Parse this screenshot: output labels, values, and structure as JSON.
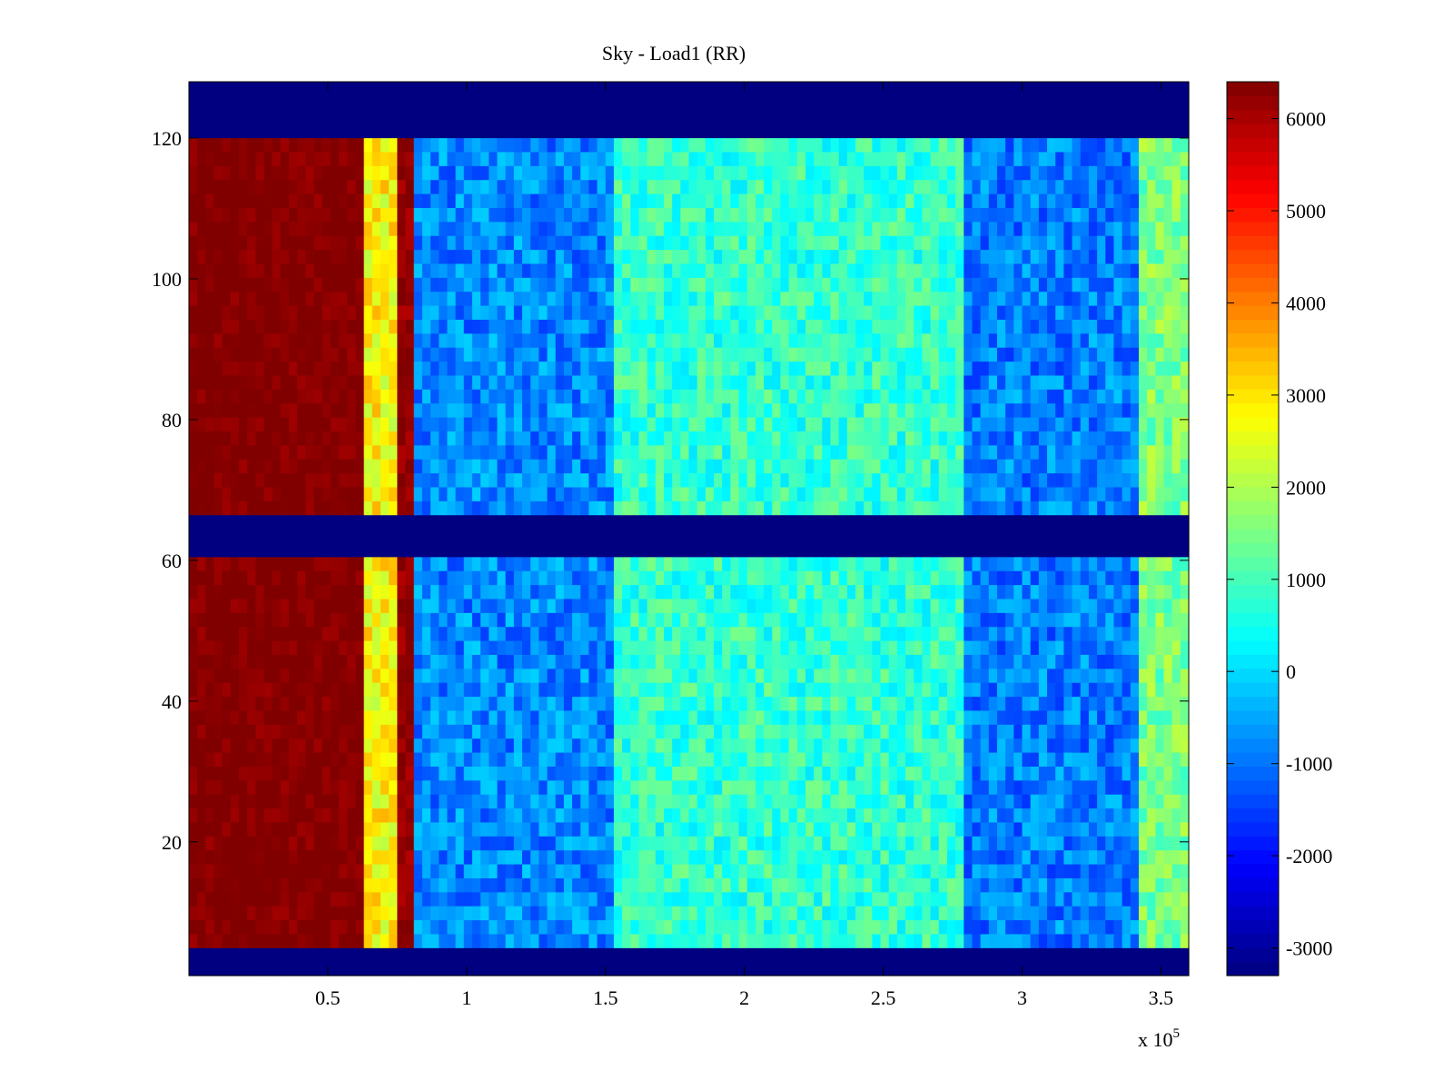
{
  "chart_data": {
    "type": "heatmap",
    "title": "Sky - Load1 (RR)",
    "xlabel": "",
    "ylabel": "",
    "x_multiplier_label": "x 10",
    "x_multiplier_exponent": "5",
    "xlim": [
      0,
      3.6
    ],
    "ylim": [
      1,
      128
    ],
    "x_ticks": [
      0.5,
      1,
      1.5,
      2,
      2.5,
      3,
      3.5
    ],
    "x_tick_labels": [
      "0.5",
      "1",
      "1.5",
      "2",
      "2.5",
      "3",
      "3.5"
    ],
    "y_ticks": [
      20,
      40,
      60,
      80,
      100,
      120
    ],
    "y_tick_labels": [
      "20",
      "40",
      "60",
      "80",
      "100",
      "120"
    ],
    "colorbar": {
      "colormap": "jet",
      "clim": [
        -3300,
        6400
      ],
      "ticks": [
        -3000,
        -2000,
        -1000,
        0,
        1000,
        2000,
        3000,
        4000,
        5000,
        6000
      ],
      "tick_labels": [
        "-3000",
        "-2000",
        "-1000",
        "0",
        "1000",
        "2000",
        "3000",
        "4000",
        "5000",
        "6000"
      ]
    },
    "masked_channel_bands": [
      {
        "y": [
          1,
          4
        ],
        "value": -3300
      },
      {
        "y": [
          61,
          67
        ],
        "value": -3300
      },
      {
        "y": [
          121,
          128
        ],
        "value": -3300
      }
    ],
    "time_regions": [
      {
        "x": [
          0,
          0.64
        ],
        "level": 6400,
        "description_value": "saturated"
      },
      {
        "x": [
          0.64,
          0.75
        ],
        "level": 2800
      },
      {
        "x": [
          0.75,
          0.82
        ],
        "level": 6200
      },
      {
        "x": [
          0.82,
          1.52
        ],
        "level": -800
      },
      {
        "x": [
          1.52,
          2.8
        ],
        "level": 800
      },
      {
        "x": [
          2.8,
          3.42
        ],
        "level": -900
      },
      {
        "x": [
          3.42,
          3.6
        ],
        "level": 1500
      }
    ],
    "grid": false,
    "legend": "none"
  }
}
